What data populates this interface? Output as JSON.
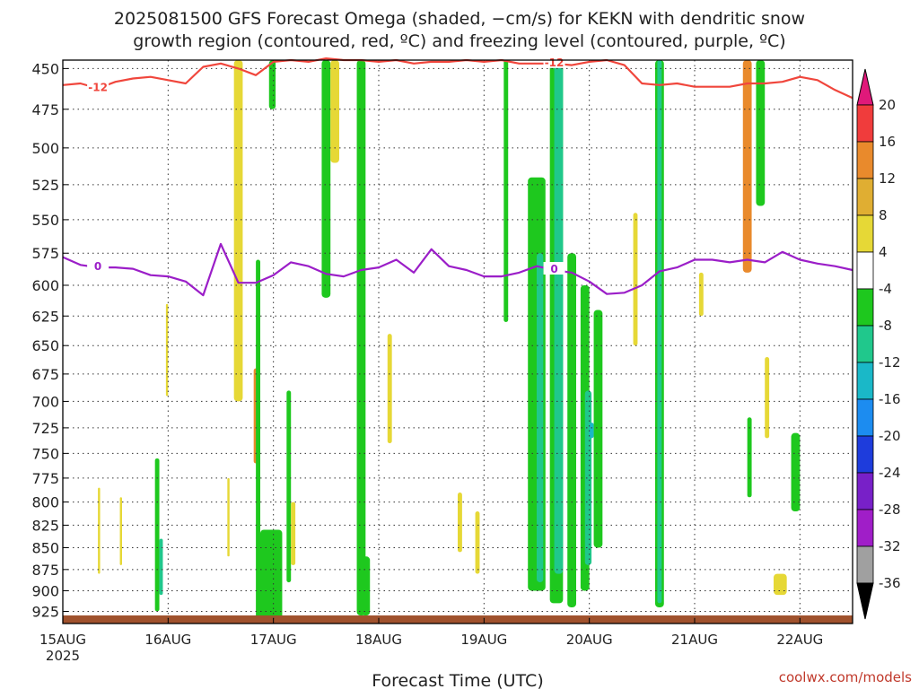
{
  "chart_data": {
    "type": "heatmap",
    "title": "2025081500 GFS Forecast Omega (shaded, −cm/s) for KEKN with dendritic snow",
    "subtitle": "growth region (contoured, red, ºC) and freezing level (contoured, purple, ºC)",
    "xlabel": "Forecast Time (UTC)",
    "x_start_label": "15AUG",
    "x_start_year": "2025",
    "x_ticks": [
      "15AUG",
      "16AUG",
      "17AUG",
      "18AUG",
      "19AUG",
      "20AUG",
      "21AUG",
      "22AUG"
    ],
    "x_range_hours": [
      0,
      180
    ],
    "y_ticks": [
      450,
      475,
      500,
      525,
      550,
      575,
      600,
      625,
      650,
      675,
      700,
      725,
      750,
      775,
      800,
      825,
      850,
      875,
      900,
      925
    ],
    "y_range_hpa": [
      445,
      940
    ],
    "y_scale": "log-pressure",
    "grid": true,
    "colorbar": {
      "ticks": [
        "20",
        "16",
        "12",
        "8",
        "4",
        "-4",
        "-8",
        "-12",
        "-16",
        "-20",
        "-24",
        "-28",
        "-32",
        "-36"
      ],
      "bands": [
        {
          "range": [
            16,
            20
          ],
          "color": "#f03c3c"
        },
        {
          "range": [
            12,
            16
          ],
          "color": "#e98a2c"
        },
        {
          "range": [
            8,
            12
          ],
          "color": "#e0ae32"
        },
        {
          "range": [
            4,
            8
          ],
          "color": "#e6d836"
        },
        {
          "range": [
            -4,
            4
          ],
          "color": "#ffffff"
        },
        {
          "range": [
            -8,
            -4
          ],
          "color": "#1ec81e"
        },
        {
          "range": [
            -12,
            -8
          ],
          "color": "#20c88c"
        },
        {
          "range": [
            -16,
            -12
          ],
          "color": "#1ab8c8"
        },
        {
          "range": [
            -20,
            -16
          ],
          "color": "#1c8cf0"
        },
        {
          "range": [
            -24,
            -20
          ],
          "color": "#1e3cdc"
        },
        {
          "range": [
            -28,
            -24
          ],
          "color": "#7820c8"
        },
        {
          "range": [
            -32,
            -28
          ],
          "color": "#a01ec8"
        },
        {
          "range": [
            -36,
            -32
          ],
          "color": "#a0a0a0"
        }
      ],
      "over_color": "#e0197a",
      "under_color": "#000000"
    },
    "series": [
      {
        "name": "-12",
        "color": "#f0463c",
        "x": [
          0,
          4,
          8,
          12,
          16,
          20,
          24,
          28,
          32,
          36,
          40,
          44,
          48,
          52,
          56,
          60,
          64,
          68,
          72,
          76,
          80,
          84,
          88,
          92,
          96,
          100,
          104,
          108,
          112,
          116,
          120,
          124,
          128,
          132,
          136,
          140,
          144,
          148,
          152,
          156,
          160,
          164,
          168,
          172,
          176,
          180
        ],
        "y": [
          460,
          459,
          462,
          458,
          456,
          455,
          457,
          459,
          449,
          447,
          450,
          454,
          446,
          445,
          446,
          444,
          445,
          445,
          446,
          445,
          447,
          446,
          446,
          445,
          446,
          445,
          447,
          447,
          447,
          448,
          446,
          445,
          448,
          459,
          460,
          459,
          461,
          461,
          461,
          459,
          459,
          458,
          455,
          457,
          463,
          468
        ]
      },
      {
        "name": "0",
        "color": "#9b1ec8",
        "x": [
          0,
          4,
          8,
          12,
          16,
          20,
          24,
          28,
          32,
          36,
          40,
          44,
          48,
          52,
          56,
          60,
          64,
          68,
          72,
          76,
          80,
          84,
          88,
          92,
          96,
          100,
          104,
          108,
          112,
          116,
          120,
          124,
          128,
          132,
          136,
          140,
          144,
          148,
          152,
          156,
          160,
          164,
          168,
          172,
          176,
          180
        ],
        "y": [
          578,
          584,
          586,
          586,
          587,
          592,
          593,
          597,
          608,
          568,
          598,
          598,
          592,
          582,
          585,
          591,
          593,
          588,
          586,
          580,
          590,
          572,
          585,
          588,
          593,
          593,
          590,
          585,
          588,
          590,
          597,
          607,
          606,
          600,
          589,
          586,
          580,
          580,
          582,
          580,
          582,
          574,
          580,
          583,
          585,
          588
        ]
      }
    ],
    "shaded_regions": [
      {
        "band": "4..8",
        "x": [
          8,
          8.5
        ],
        "p": [
          785,
          880
        ]
      },
      {
        "band": "4..8",
        "x": [
          13,
          13.5
        ],
        "p": [
          795,
          870
        ]
      },
      {
        "band": "4..8",
        "x": [
          23.5,
          24
        ],
        "p": [
          615,
          695
        ]
      },
      {
        "band": "-8..-4",
        "x": [
          21,
          22
        ],
        "p": [
          755,
          925
        ]
      },
      {
        "band": "-12..-8",
        "x": [
          22,
          22.8
        ],
        "p": [
          840,
          905
        ]
      },
      {
        "band": "4..8",
        "x": [
          39,
          41
        ],
        "p": [
          445,
          700
        ]
      },
      {
        "band": "4..8",
        "x": [
          37.5,
          38
        ],
        "p": [
          775,
          860
        ]
      },
      {
        "band": "12..16",
        "x": [
          43.5,
          44.5
        ],
        "p": [
          670,
          760
        ]
      },
      {
        "band": "-8..-4",
        "x": [
          44,
          45
        ],
        "p": [
          580,
          935
        ]
      },
      {
        "band": "-8..-4",
        "x": [
          45,
          50
        ],
        "p": [
          830,
          935
        ]
      },
      {
        "band": "-8..-4",
        "x": [
          47,
          48.5
        ],
        "p": [
          445,
          475
        ]
      },
      {
        "band": "-8..-4",
        "x": [
          51,
          52
        ],
        "p": [
          690,
          890
        ]
      },
      {
        "band": "4..8",
        "x": [
          52,
          53
        ],
        "p": [
          800,
          870
        ]
      },
      {
        "band": "-8..-4",
        "x": [
          59,
          61
        ],
        "p": [
          445,
          610
        ]
      },
      {
        "band": "4..8",
        "x": [
          61,
          63
        ],
        "p": [
          445,
          510
        ]
      },
      {
        "band": "-8..-4",
        "x": [
          67,
          69
        ],
        "p": [
          445,
          930
        ]
      },
      {
        "band": "-8..-4",
        "x": [
          68,
          70
        ],
        "p": [
          860,
          930
        ]
      },
      {
        "band": "4..8",
        "x": [
          74,
          75
        ],
        "p": [
          640,
          740
        ]
      },
      {
        "band": "4..8",
        "x": [
          90,
          91
        ],
        "p": [
          790,
          855
        ]
      },
      {
        "band": "4..8",
        "x": [
          94,
          95
        ],
        "p": [
          810,
          880
        ]
      },
      {
        "band": "-8..-4",
        "x": [
          100.5,
          101.5
        ],
        "p": [
          445,
          630
        ]
      },
      {
        "band": "-8..-4",
        "x": [
          106,
          110
        ],
        "p": [
          520,
          900
        ]
      },
      {
        "band": "-12..-8",
        "x": [
          108,
          109.5
        ],
        "p": [
          575,
          890
        ]
      },
      {
        "band": "-8..-4",
        "x": [
          111,
          114
        ],
        "p": [
          445,
          915
        ]
      },
      {
        "band": "-12..-8",
        "x": [
          112,
          114
        ],
        "p": [
          445,
          880
        ]
      },
      {
        "band": "-8..-4",
        "x": [
          115,
          117
        ],
        "p": [
          575,
          920
        ]
      },
      {
        "band": "-8..-4",
        "x": [
          118,
          120
        ],
        "p": [
          600,
          900
        ]
      },
      {
        "band": "-12..-8",
        "x": [
          119,
          120.5
        ],
        "p": [
          690,
          870
        ]
      },
      {
        "band": "-16..-12",
        "x": [
          120,
          121
        ],
        "p": [
          720,
          735
        ]
      },
      {
        "band": "-8..-4",
        "x": [
          121,
          123
        ],
        "p": [
          620,
          850
        ]
      },
      {
        "band": "4..8",
        "x": [
          130,
          131
        ],
        "p": [
          545,
          650
        ]
      },
      {
        "band": "-8..-4",
        "x": [
          135,
          137
        ],
        "p": [
          445,
          920
        ]
      },
      {
        "band": "-12..-8",
        "x": [
          135.5,
          136.5
        ],
        "p": [
          445,
          915
        ]
      },
      {
        "band": "4..8",
        "x": [
          145,
          146
        ],
        "p": [
          590,
          625
        ]
      },
      {
        "band": "12..16",
        "x": [
          155,
          157
        ],
        "p": [
          445,
          590
        ]
      },
      {
        "band": "-8..-4",
        "x": [
          158,
          160
        ],
        "p": [
          445,
          540
        ]
      },
      {
        "band": "-8..-4",
        "x": [
          156,
          157
        ],
        "p": [
          715,
          795
        ]
      },
      {
        "band": "4..8",
        "x": [
          160,
          161
        ],
        "p": [
          660,
          735
        ]
      },
      {
        "band": "4..8",
        "x": [
          162,
          165
        ],
        "p": [
          880,
          905
        ]
      },
      {
        "band": "-8..-4",
        "x": [
          166,
          168
        ],
        "p": [
          730,
          810
        ]
      }
    ],
    "surface": {
      "color": "#a0522d",
      "p": [
        940,
        930
      ]
    }
  },
  "credit": "coolwx.com/models"
}
